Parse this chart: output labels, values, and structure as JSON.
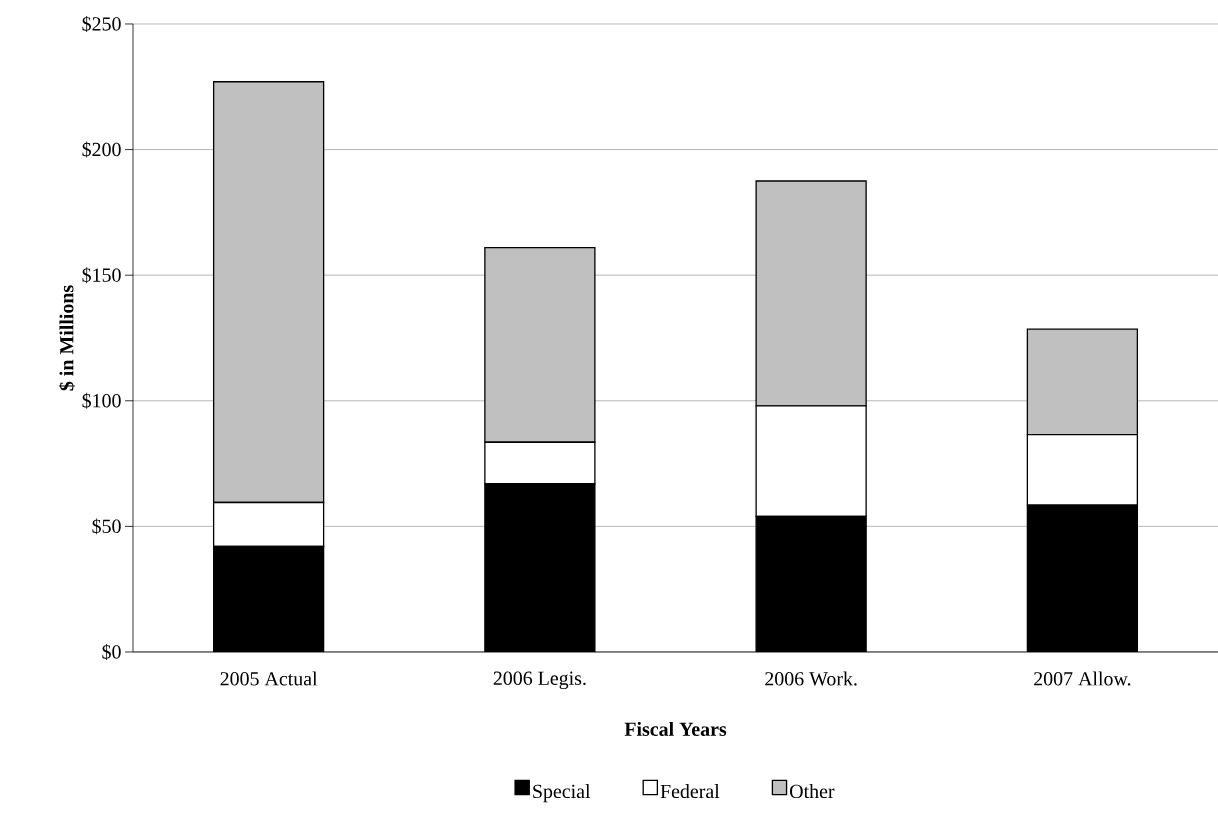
{
  "chart_data": {
    "type": "bar",
    "stacked": true,
    "xlabel": "Fiscal Years",
    "ylabel": "$ in Millions",
    "categories": [
      "2005 Actual",
      "2006 Legis.",
      "2006 Work.",
      "2007 Allow."
    ],
    "series": [
      {
        "name": "Special",
        "color": "#000000",
        "values": [
          42,
          67,
          54,
          58.5
        ]
      },
      {
        "name": "Federal",
        "color": "#ffffff",
        "values": [
          17.5,
          16.5,
          44,
          28
        ]
      },
      {
        "name": "Other",
        "color": "#c0c0c0",
        "values": [
          167.5,
          77.5,
          89.5,
          42
        ]
      }
    ],
    "ylim": [
      0,
      250
    ],
    "yticks": [
      {
        "value": 0,
        "label": "$0"
      },
      {
        "value": 50,
        "label": "$50"
      },
      {
        "value": 100,
        "label": "$100"
      },
      {
        "value": 150,
        "label": "$150"
      },
      {
        "value": 200,
        "label": "$200"
      },
      {
        "value": 250,
        "label": "$250"
      }
    ],
    "grid": "y",
    "legend": "bottom"
  }
}
